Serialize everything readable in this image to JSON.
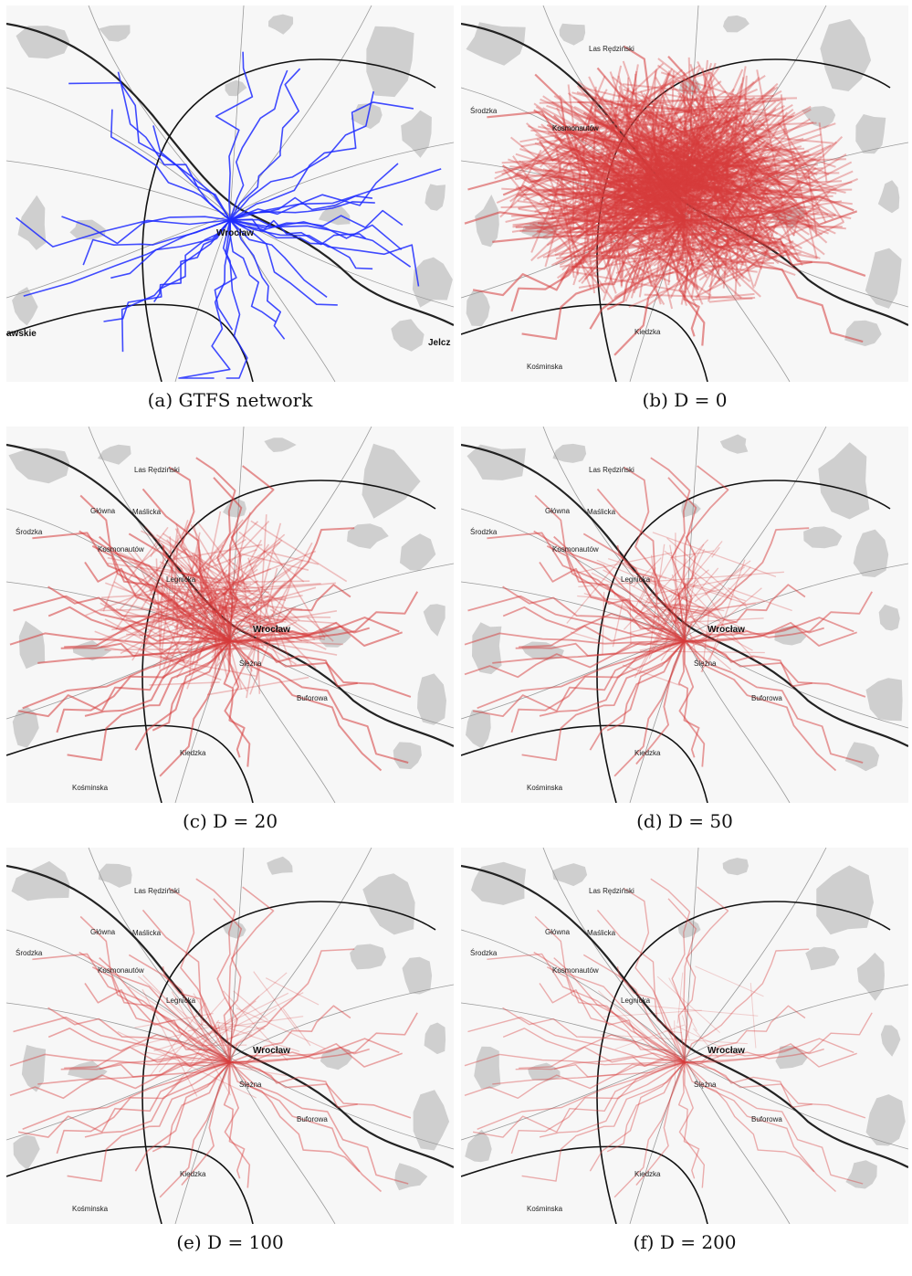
{
  "figure": {
    "panels": [
      {
        "id": "a",
        "caption": "(a) GTFS network",
        "style": "gtfs",
        "route_color": "#1f2bff",
        "labels": {
          "city": "Wrocław",
          "left": "awskie",
          "right": "Jelcz"
        }
      },
      {
        "id": "b",
        "caption": "(b) D = 0",
        "style": "dense",
        "route_color": "#d63b3b",
        "labels": {
          "places": [
            "Las Rędziński",
            "Środzka",
            "Kosmonautów",
            "Kosmonautów",
            "Kiedzka",
            "Kośminska"
          ]
        }
      },
      {
        "id": "c",
        "caption": "(c) D = 20",
        "style": "medium",
        "route_color": "#d63b3b",
        "labels": {
          "places": [
            "Las Rędziński",
            "Środzka",
            "Główna",
            "Maślicka",
            "Kosmonautów",
            "Legnicka",
            "Wrocław",
            "Ślężna",
            "Buforowa",
            "Kiedzka",
            "Kośminska"
          ]
        }
      },
      {
        "id": "d",
        "caption": "(d) D = 50",
        "style": "light",
        "route_color": "#d63b3b",
        "labels": {
          "places": [
            "Las Rędziński",
            "Środzka",
            "Główna",
            "Maślicka",
            "Kosmonautów",
            "Legnicka",
            "Wrocław",
            "Ślężna",
            "Buforowa",
            "Kiedzka",
            "Kośminska"
          ]
        }
      },
      {
        "id": "e",
        "caption": "(e) D = 100",
        "style": "lighter",
        "route_color": "#d63b3b",
        "labels": {
          "places": [
            "Las Rędziński",
            "Środzka",
            "Główna",
            "Maślicka",
            "Kosmonautów",
            "Legnicka",
            "Wrocław",
            "Ślężna",
            "Buforowa",
            "Kiedzka",
            "Kośminska"
          ]
        }
      },
      {
        "id": "f",
        "caption": "(f) D = 200",
        "style": "lightest",
        "route_color": "#d63b3b",
        "labels": {
          "places": [
            "Las Rędziński",
            "Środzka",
            "Główna",
            "Maślicka",
            "Kosmonautów",
            "Legnicka",
            "Wrocław",
            "Ślężna",
            "Buforowa",
            "Kiedzka",
            "Kośminska"
          ]
        }
      }
    ],
    "colors": {
      "background": "#f7f7f7",
      "urban_area": "#c4c4c4",
      "water": "#222222",
      "road": "#9a9a9a",
      "ring": "#111111",
      "gtfs": "#1f2bff",
      "fitted": "#d63b3b"
    }
  }
}
